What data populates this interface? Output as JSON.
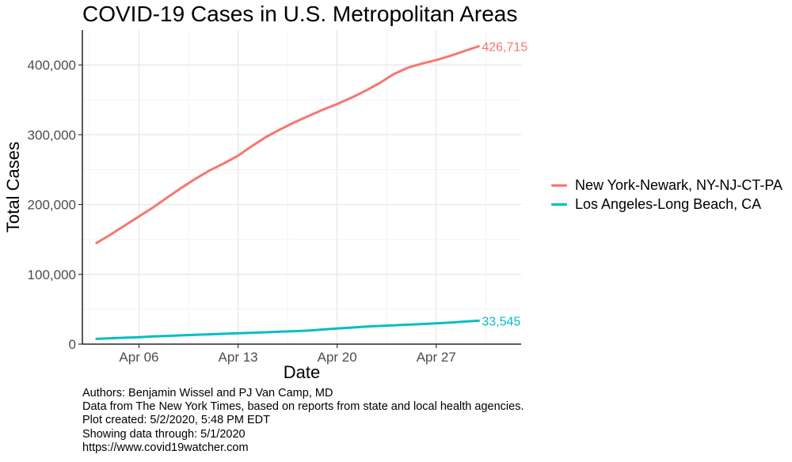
{
  "chart_data": {
    "type": "line",
    "title": "COVID-19 Cases in U.S. Metropolitan Areas",
    "xlabel": "Date",
    "ylabel": "Total Cases",
    "x_start": "2020-04-03",
    "x_end": "2020-05-01",
    "xlim": [
      "2020-04-02",
      "2020-05-03"
    ],
    "ylim": [
      0,
      450000
    ],
    "x_ticks": [
      {
        "date": "2020-04-06",
        "label": "Apr 06"
      },
      {
        "date": "2020-04-13",
        "label": "Apr 13"
      },
      {
        "date": "2020-04-20",
        "label": "Apr 20"
      },
      {
        "date": "2020-04-27",
        "label": "Apr 27"
      }
    ],
    "y_ticks": [
      {
        "value": 0,
        "label": "0"
      },
      {
        "value": 100000,
        "label": "100,000"
      },
      {
        "value": 200000,
        "label": "200,000"
      },
      {
        "value": 300000,
        "label": "300,000"
      },
      {
        "value": 400000,
        "label": "400,000"
      }
    ],
    "grid": true,
    "legend_position": "right",
    "series": [
      {
        "name": "New York-Newark, NY-NJ-CT-PA",
        "color": "#F8766D",
        "end_label": "426,715",
        "values": [
          145000,
          157000,
          170000,
          183000,
          196000,
          210000,
          224000,
          237000,
          249000,
          259000,
          270000,
          284000,
          297000,
          308000,
          318000,
          327000,
          336000,
          344000,
          353000,
          363000,
          374000,
          387000,
          396000,
          402000,
          407000,
          413000,
          420000,
          426715
        ]
      },
      {
        "name": "Los Angeles-Long Beach, CA",
        "color": "#00BFC4",
        "end_label": "33,545",
        "values": [
          7500,
          8400,
          9200,
          10000,
          11000,
          11800,
          12600,
          13400,
          14100,
          14800,
          15600,
          16300,
          17000,
          17800,
          18600,
          19400,
          21000,
          22400,
          23700,
          25000,
          26100,
          27000,
          27900,
          28800,
          29700,
          31000,
          32300,
          33545
        ]
      }
    ]
  },
  "caption": [
    "Authors: Benjamin Wissel and PJ Van Camp, MD",
    "Data from The New York Times, based on reports from state and local health agencies.",
    "Plot created: 5/2/2020, 5:48 PM EDT",
    "Showing data through: 5/1/2020",
    "https://www.covid19watcher.com"
  ]
}
